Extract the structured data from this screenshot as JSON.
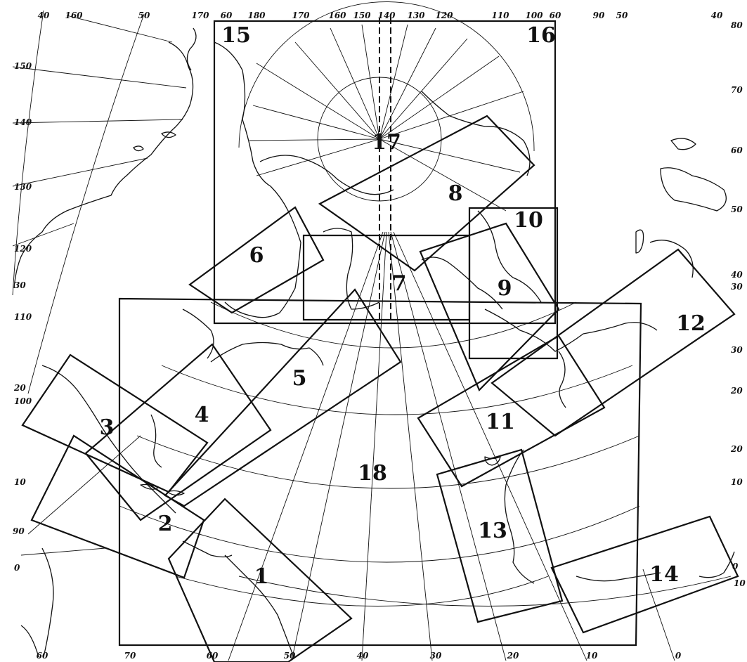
{
  "map": {
    "sheets": [
      {
        "id": "1",
        "label": "1"
      },
      {
        "id": "2",
        "label": "2"
      },
      {
        "id": "3",
        "label": "3"
      },
      {
        "id": "4",
        "label": "4"
      },
      {
        "id": "5",
        "label": "5"
      },
      {
        "id": "6",
        "label": "6"
      },
      {
        "id": "7",
        "label": "7"
      },
      {
        "id": "8",
        "label": "8"
      },
      {
        "id": "9",
        "label": "9"
      },
      {
        "id": "10",
        "label": "10"
      },
      {
        "id": "11",
        "label": "11"
      },
      {
        "id": "12",
        "label": "12"
      },
      {
        "id": "13",
        "label": "13"
      },
      {
        "id": "14",
        "label": "14"
      },
      {
        "id": "15",
        "label": "15"
      },
      {
        "id": "16",
        "label": "16"
      },
      {
        "id": "17",
        "label": "17"
      },
      {
        "id": "18",
        "label": "18"
      }
    ],
    "degree_labels": {
      "top": [
        "40",
        "160",
        "50",
        "170",
        "60",
        "180",
        "170",
        "160",
        "150",
        "140",
        "130",
        "120",
        "110",
        "100",
        "60",
        "90",
        "50",
        "40"
      ],
      "left": [
        "150",
        "140",
        "130",
        "120",
        "30",
        "110",
        "20",
        "100",
        "10",
        "90",
        "0"
      ],
      "right": [
        "80",
        "70",
        "60",
        "50",
        "40",
        "30",
        "30",
        "20",
        "20",
        "10",
        "0",
        "10"
      ],
      "bottom": [
        "60",
        "70",
        "60",
        "50",
        "40",
        "30",
        "20",
        "10",
        "0"
      ]
    }
  }
}
